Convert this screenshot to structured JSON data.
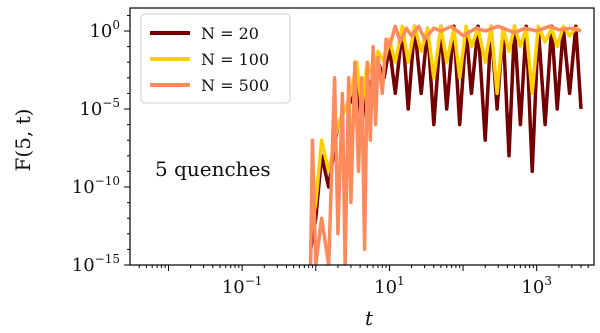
{
  "chart_data": {
    "type": "line",
    "xscale": "log",
    "yscale": "log",
    "xlim": [
      0.003,
      6000
    ],
    "ylim": [
      1e-15,
      30
    ],
    "x_ticks": [
      {
        "value": 0.1,
        "base": "10",
        "exp": "−1"
      },
      {
        "value": 10,
        "base": "10",
        "exp": "1"
      },
      {
        "value": 1000,
        "base": "10",
        "exp": "3"
      }
    ],
    "y_ticks": [
      {
        "value": 1,
        "base": "10",
        "exp": "0"
      },
      {
        "value": 1e-05,
        "base": "10",
        "exp": "−5"
      },
      {
        "value": 1e-10,
        "base": "10",
        "exp": "−10"
      },
      {
        "value": 1e-15,
        "base": "10",
        "exp": "−15"
      }
    ],
    "xlabel": "t",
    "ylabel": "F(5, t)",
    "annotation": "5 quenches",
    "legend": "top-left",
    "grid": false,
    "series": [
      {
        "name": "N = 20",
        "color": "#730000",
        "x": [
          0.85,
          1.0,
          1.2,
          1.5,
          2.0,
          2.5,
          3.0,
          3.6,
          4.2,
          5.0,
          6.0,
          7.0,
          8.5,
          10,
          12,
          15,
          18,
          22,
          27,
          33,
          40,
          50,
          60,
          75,
          90,
          110,
          130,
          160,
          200,
          240,
          290,
          350,
          420,
          500,
          600,
          720,
          870,
          1050,
          1300,
          1600,
          1900,
          2300,
          2800,
          3400,
          4000
        ],
        "y": [
          1e-14,
          1e-12,
          1e-08,
          1e-10,
          1e-06,
          1e-05,
          3e-05,
          0.001,
          1e-06,
          0.001,
          0.0001,
          0.01,
          0.001,
          0.1,
          0.0001,
          1.5,
          1e-05,
          2,
          0.0001,
          1.5,
          1e-06,
          2,
          1e-05,
          2,
          1e-06,
          1.5,
          0.0001,
          2,
          1e-07,
          2,
          1e-05,
          1.5,
          1e-08,
          2,
          1e-06,
          2,
          1e-09,
          1.5,
          1e-06,
          2,
          1e-05,
          1.5,
          0.0001,
          2,
          1e-05
        ]
      },
      {
        "name": "N = 100",
        "color": "#FFD000",
        "x": [
          0.85,
          1.0,
          1.2,
          1.5,
          2.0,
          2.5,
          3.0,
          3.6,
          4.2,
          5.0,
          6.0,
          7.0,
          8.5,
          10,
          12,
          15,
          18,
          22,
          27,
          33,
          40,
          50,
          60,
          75,
          90,
          110,
          130,
          160,
          200,
          240,
          290,
          350,
          420,
          500,
          600,
          720,
          870,
          1050,
          1300,
          1600,
          1900,
          2300,
          2800,
          3400,
          4000
        ],
        "y": [
          1e-13,
          1e-11,
          1e-07,
          1e-09,
          1e-06,
          1e-05,
          0.0001,
          0.01,
          1e-05,
          0.01,
          0.001,
          0.05,
          0.01,
          0.3,
          0.01,
          2,
          0.01,
          2,
          0.05,
          1.5,
          0.001,
          2,
          0.01,
          1.5,
          0.001,
          2,
          0.1,
          1.5,
          0.01,
          2,
          0.0001,
          1.5,
          0.05,
          2,
          0.1,
          1.5,
          0.0001,
          2,
          0.2,
          1.5,
          0.1,
          2,
          0.5,
          1.5,
          1
        ]
      },
      {
        "name": "N = 500",
        "color": "#FF8A5C",
        "x": [
          0.85,
          0.9,
          1.0,
          1.2,
          1.5,
          1.8,
          2.0,
          2.3,
          2.5,
          2.8,
          3.0,
          3.4,
          3.8,
          4.2,
          4.6,
          5.0,
          5.5,
          6.0,
          6.5,
          7.0,
          8.0,
          9.0,
          10,
          12,
          14,
          17,
          20,
          25,
          30,
          40,
          50,
          70,
          100,
          150,
          200,
          300,
          500,
          700,
          1000,
          1500,
          2000,
          3000,
          4000
        ],
        "y": [
          1e-15,
          1e-07,
          1e-15,
          1e-12,
          1e-15,
          0.001,
          1e-13,
          0.0001,
          1e-15,
          0.001,
          1e-11,
          0.01,
          1e-09,
          0.001,
          1e-14,
          0.01,
          1e-07,
          0.1,
          1e-06,
          0.02,
          0.0001,
          0.3,
          0.1,
          2,
          0.2,
          1.5,
          0.5,
          2,
          0.3,
          1.5,
          1,
          2,
          0.5,
          1.5,
          1,
          2,
          0.8,
          1.5,
          1,
          2,
          1.2,
          1.5,
          1
        ]
      }
    ]
  }
}
